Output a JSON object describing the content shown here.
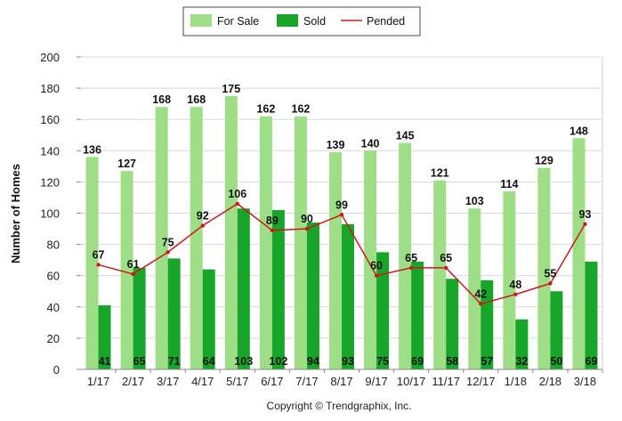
{
  "chart_data": {
    "type": "bar",
    "categories": [
      "1/17",
      "2/17",
      "3/17",
      "4/17",
      "5/17",
      "6/17",
      "7/17",
      "8/17",
      "9/17",
      "10/17",
      "11/17",
      "12/17",
      "1/18",
      "2/18",
      "3/18"
    ],
    "series": [
      {
        "name": "For Sale",
        "kind": "bar",
        "color": "#9ede86",
        "values": [
          136,
          127,
          168,
          168,
          175,
          162,
          162,
          139,
          140,
          145,
          121,
          103,
          114,
          129,
          148
        ]
      },
      {
        "name": "Sold",
        "kind": "bar",
        "color": "#17a629",
        "values": [
          41,
          65,
          71,
          64,
          103,
          102,
          94,
          93,
          75,
          69,
          58,
          57,
          32,
          50,
          69
        ]
      },
      {
        "name": "Pended",
        "kind": "line",
        "color": "#d0181c",
        "values": [
          67,
          61,
          75,
          92,
          106,
          89,
          90,
          99,
          60,
          65,
          65,
          42,
          48,
          55,
          93
        ]
      }
    ],
    "ylabel": "Number of Homes",
    "xlabel": "",
    "ylim": [
      0,
      200
    ],
    "yticks": [
      0,
      20,
      40,
      60,
      80,
      100,
      120,
      140,
      160,
      180,
      200
    ],
    "grid": true,
    "legend_position": "top-center",
    "footer": "Copyright © Trendgraphix, Inc."
  }
}
